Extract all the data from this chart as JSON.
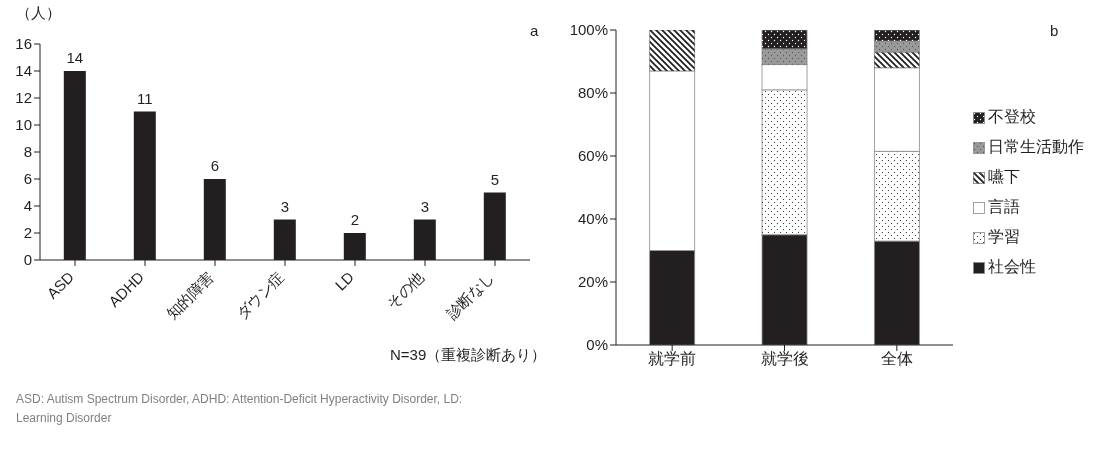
{
  "chart_data": [
    {
      "type": "bar",
      "ylabel": "（人）",
      "categories": [
        "ASD",
        "ADHD",
        "知的障害",
        "ダウン症",
        "LD",
        "その他",
        "診断なし"
      ],
      "values": [
        14,
        11,
        6,
        3,
        2,
        3,
        5
      ],
      "color": "#231f20",
      "ylim": [
        0,
        16
      ],
      "yticks": [
        0,
        2,
        4,
        6,
        8,
        10,
        12,
        14,
        16
      ],
      "data_labels": true,
      "annotations": [
        "a",
        "N=39（重複診断あり）",
        "ASD: Autism Spectrum Disorder, ADHD: Attention-Deficit Hyperactivity Disorder, LD: Learning Disorder"
      ]
    },
    {
      "type": "bar",
      "stacked": true,
      "categories": [
        "就学前",
        "就学後",
        "全体"
      ],
      "ylim": [
        0,
        100
      ],
      "yticks": [
        {
          "value": 0,
          "label": "0%"
        },
        {
          "value": 20,
          "label": "20%"
        },
        {
          "value": 40,
          "label": "40%"
        },
        {
          "value": 60,
          "label": "60%"
        },
        {
          "value": 80,
          "label": "80%"
        },
        {
          "value": 100,
          "label": "100%"
        }
      ],
      "legend": "right",
      "annotations": [
        "b"
      ],
      "series": [
        {
          "name": "社会性",
          "color": "#231f20",
          "values": [
            30,
            35,
            33
          ]
        },
        {
          "name": "学習",
          "color": "#ffffff",
          "values": [
            0,
            46,
            28.5
          ]
        },
        {
          "name": "言語",
          "color": "#ffffff",
          "values": [
            57,
            8,
            26.5
          ]
        },
        {
          "name": "嚥下",
          "color": "#ffffff",
          "values": [
            13,
            0,
            5
          ]
        },
        {
          "name": "日常生活動作",
          "color": "#9a9a9a",
          "values": [
            0,
            5,
            3.5
          ]
        },
        {
          "name": "不登校",
          "color": "#231f20",
          "values": [
            0,
            6,
            3.5
          ]
        }
      ]
    }
  ]
}
